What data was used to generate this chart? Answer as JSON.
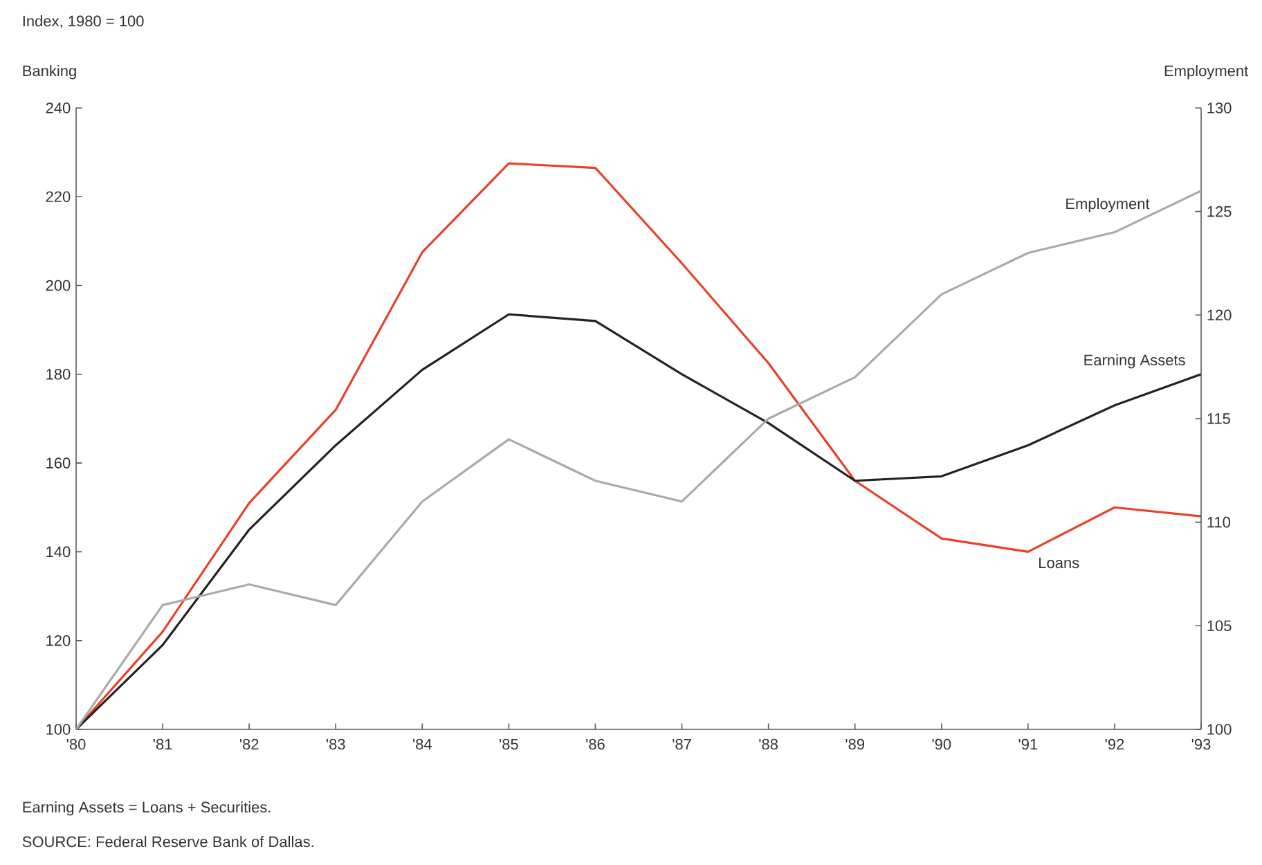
{
  "chart_data": {
    "type": "line",
    "subtitle": "Index, 1980 = 100",
    "ylabel": "Banking",
    "y2label": "Employment",
    "categories": [
      "'80",
      "'81",
      "'82",
      "'83",
      "'84",
      "'85",
      "'86",
      "'87",
      "'88",
      "'89",
      "'90",
      "'91",
      "'92",
      "'93"
    ],
    "series": [
      {
        "name": "Loans",
        "color": "#e8402a",
        "values": [
          100,
          122,
          151,
          172,
          207.5,
          227.5,
          226.5,
          205,
          182.5,
          156,
          143,
          140,
          150,
          148
        ]
      },
      {
        "name": "Earning Assets",
        "color": "#222222",
        "values": [
          100,
          119,
          145,
          164,
          181,
          193.5,
          192,
          180,
          169,
          156,
          157,
          164,
          173,
          180
        ]
      },
      {
        "name": "Employment",
        "color": "#aaaaaa",
        "axis": "y2",
        "values": [
          100,
          106,
          107,
          106,
          111,
          114,
          112,
          111,
          115,
          117,
          121,
          123,
          124,
          126
        ]
      }
    ],
    "ylim": [
      100,
      240
    ],
    "yticks": [
      100,
      120,
      140,
      160,
      180,
      200,
      220,
      240
    ],
    "y2lim": [
      100,
      130
    ],
    "y2ticks": [
      100,
      105,
      110,
      115,
      120,
      125,
      130
    ],
    "grid": false,
    "marker": "none",
    "line_style": "solid",
    "annotations": [
      "Earning Assets = Loans + Securities.",
      "SOURCE: Federal Reserve Bank of Dallas."
    ]
  }
}
